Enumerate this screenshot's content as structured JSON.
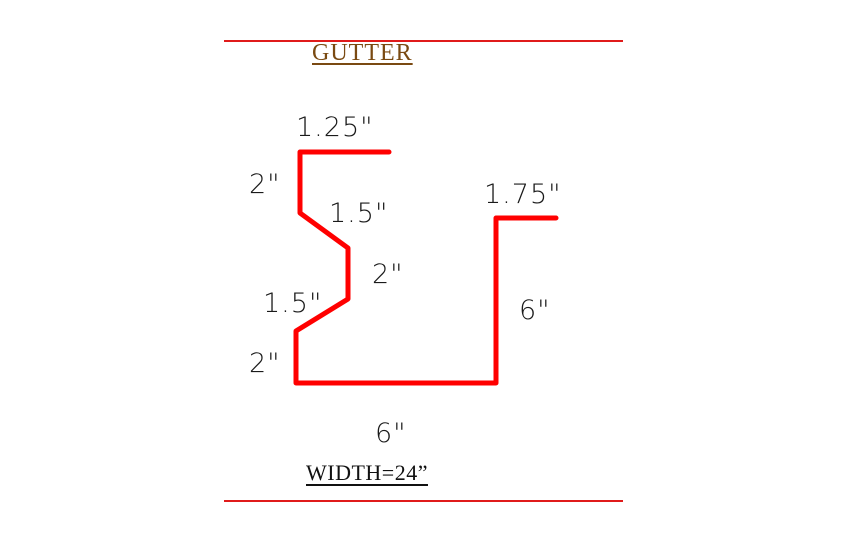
{
  "title": "GUTTER",
  "caption": "WIDTH=24”",
  "colors": {
    "profile_line": "#ff0000",
    "rules": "#e01b1b",
    "title": "#7a4a12",
    "text": "#1a1a1a"
  },
  "dimensions": {
    "top_flange": "1.25\"",
    "upper_vertical": "2\"",
    "upper_slant": "1.5\"",
    "middle_vertical": "2\"",
    "lower_slant": "1.5\"",
    "lower_vertical": "2\"",
    "bottom": "6\"",
    "back_wall": "6\"",
    "back_flange": "1.75\""
  }
}
